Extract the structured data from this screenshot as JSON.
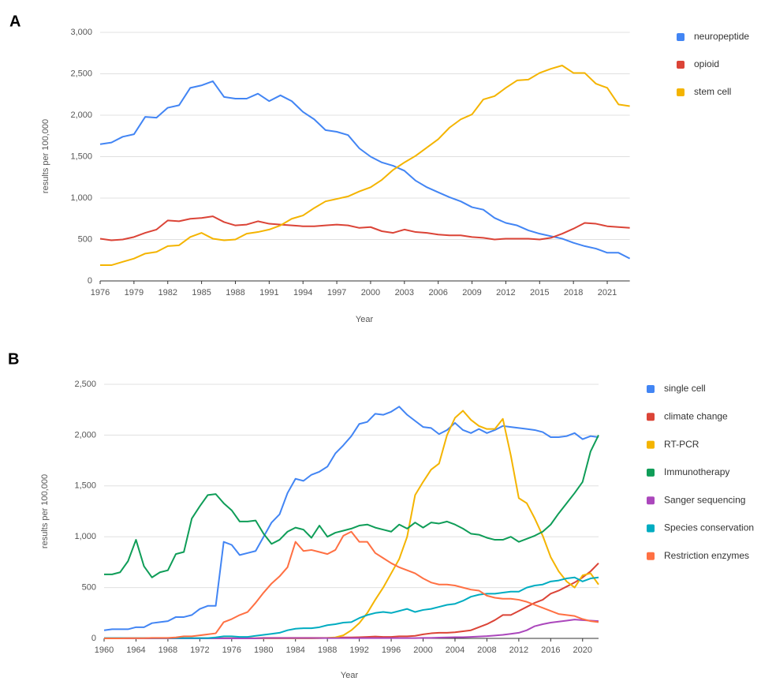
{
  "chart_data": [
    {
      "type": "line",
      "panel": "A",
      "xlabel": "Year",
      "ylabel": "results per 100,000",
      "legend": "right",
      "grid": true,
      "x": [
        1976,
        1977,
        1978,
        1979,
        1980,
        1981,
        1982,
        1983,
        1984,
        1985,
        1986,
        1987,
        1988,
        1989,
        1990,
        1991,
        1992,
        1993,
        1994,
        1995,
        1996,
        1997,
        1998,
        1999,
        2000,
        2001,
        2002,
        2003,
        2004,
        2005,
        2006,
        2007,
        2008,
        2009,
        2010,
        2011,
        2012,
        2013,
        2014,
        2015,
        2016,
        2017,
        2018,
        2019,
        2020,
        2021,
        2022,
        2023
      ],
      "xlim": [
        1976,
        2023
      ],
      "xticks": [
        1976,
        1979,
        1982,
        1985,
        1988,
        1991,
        1994,
        1997,
        2000,
        2003,
        2006,
        2009,
        2012,
        2015,
        2018,
        2021
      ],
      "ylim": [
        0,
        3000
      ],
      "yticks": [
        0,
        500,
        {
          "value": 1000,
          "label": "1,000"
        },
        {
          "value": 1500,
          "label": "1,500"
        },
        {
          "value": 2000,
          "label": "2,000"
        },
        {
          "value": 2500,
          "label": "2,500"
        },
        {
          "value": 3000,
          "label": "3,000"
        }
      ],
      "series": [
        {
          "name": "neuropeptide",
          "color": "#4285f4",
          "values": [
            1650,
            1670,
            1740,
            1770,
            1980,
            1970,
            2090,
            2120,
            2330,
            2360,
            2410,
            2220,
            2200,
            2200,
            2260,
            2170,
            2240,
            2170,
            2040,
            1950,
            1820,
            1800,
            1760,
            1600,
            1500,
            1430,
            1390,
            1330,
            1210,
            1130,
            1070,
            1010,
            960,
            890,
            860,
            760,
            700,
            670,
            610,
            570,
            540,
            510,
            460,
            420,
            390,
            340,
            340,
            270
          ]
        },
        {
          "name": "opioid",
          "color": "#db4437",
          "values": [
            510,
            490,
            500,
            530,
            580,
            620,
            730,
            720,
            750,
            760,
            780,
            710,
            670,
            680,
            720,
            690,
            680,
            670,
            660,
            660,
            670,
            680,
            670,
            640,
            650,
            600,
            580,
            620,
            590,
            580,
            560,
            550,
            550,
            530,
            520,
            500,
            510,
            510,
            510,
            500,
            520,
            570,
            630,
            700,
            690,
            660,
            650,
            640
          ]
        },
        {
          "name": "stem cell",
          "color": "#f4b400",
          "values": [
            190,
            190,
            230,
            270,
            330,
            350,
            420,
            430,
            530,
            580,
            510,
            490,
            500,
            570,
            590,
            620,
            670,
            750,
            790,
            880,
            960,
            990,
            1020,
            1080,
            1130,
            1220,
            1340,
            1430,
            1510,
            1610,
            1710,
            1850,
            1950,
            2010,
            2190,
            2230,
            2330,
            2420,
            2430,
            2510,
            2560,
            2600,
            2510,
            2510,
            2380,
            2330,
            2130,
            2110
          ]
        }
      ]
    },
    {
      "type": "line",
      "panel": "B",
      "xlabel": "Year",
      "ylabel": "results per 100,000",
      "legend": "right",
      "grid": true,
      "x": [
        1960,
        1961,
        1962,
        1963,
        1964,
        1965,
        1966,
        1967,
        1968,
        1969,
        1970,
        1971,
        1972,
        1973,
        1974,
        1975,
        1976,
        1977,
        1978,
        1979,
        1980,
        1981,
        1982,
        1983,
        1984,
        1985,
        1986,
        1987,
        1988,
        1989,
        1990,
        1991,
        1992,
        1993,
        1994,
        1995,
        1996,
        1997,
        1998,
        1999,
        2000,
        2001,
        2002,
        2003,
        2004,
        2005,
        2006,
        2007,
        2008,
        2009,
        2010,
        2011,
        2012,
        2013,
        2014,
        2015,
        2016,
        2017,
        2018,
        2019,
        2020,
        2021,
        2022
      ],
      "xlim": [
        1960,
        2022
      ],
      "xticks": [
        1960,
        1964,
        1968,
        1972,
        1976,
        1980,
        1984,
        1988,
        1992,
        1996,
        2000,
        2004,
        2008,
        2012,
        2016,
        2020
      ],
      "ylim": [
        0,
        2500
      ],
      "yticks": [
        0,
        500,
        {
          "value": 1000,
          "label": "1,000"
        },
        {
          "value": 1500,
          "label": "1,500"
        },
        {
          "value": 2000,
          "label": "2,000"
        },
        {
          "value": 2500,
          "label": "2,500"
        }
      ],
      "series": [
        {
          "name": "single cell",
          "color": "#4285f4",
          "values": [
            80,
            90,
            90,
            90,
            110,
            110,
            150,
            160,
            170,
            210,
            210,
            230,
            290,
            320,
            320,
            950,
            920,
            820,
            840,
            860,
            1000,
            1140,
            1220,
            1430,
            1570,
            1550,
            1610,
            1640,
            1690,
            1820,
            1900,
            1990,
            2110,
            2130,
            2210,
            2200,
            2230,
            2280,
            2200,
            2140,
            2080,
            2070,
            2010,
            2050,
            2120,
            2050,
            2020,
            2060,
            2020,
            2050,
            2090,
            2080,
            2070,
            2060,
            2050,
            2030,
            1980,
            1980,
            1990,
            2020,
            1960,
            1990,
            1980
          ]
        },
        {
          "name": "climate change",
          "color": "#db4437",
          "values": [
            2,
            2,
            2,
            2,
            2,
            2,
            2,
            2,
            2,
            2,
            2,
            2,
            2,
            2,
            2,
            2,
            2,
            2,
            2,
            2,
            5,
            5,
            5,
            5,
            5,
            5,
            5,
            5,
            5,
            5,
            10,
            10,
            12,
            15,
            18,
            15,
            15,
            20,
            20,
            25,
            40,
            50,
            55,
            55,
            60,
            70,
            80,
            110,
            140,
            180,
            230,
            230,
            270,
            310,
            350,
            380,
            440,
            470,
            510,
            550,
            600,
            660,
            740
          ]
        },
        {
          "name": "RT-PCR",
          "color": "#f4b400",
          "values": [
            0,
            0,
            0,
            0,
            0,
            0,
            0,
            0,
            0,
            0,
            0,
            0,
            0,
            0,
            0,
            0,
            0,
            0,
            0,
            0,
            0,
            0,
            0,
            0,
            0,
            0,
            0,
            2,
            5,
            10,
            30,
            80,
            150,
            250,
            380,
            500,
            640,
            780,
            1000,
            1410,
            1540,
            1660,
            1720,
            2000,
            2170,
            2240,
            2150,
            2090,
            2060,
            2060,
            2160,
            1800,
            1380,
            1330,
            1180,
            1010,
            800,
            660,
            560,
            500,
            620,
            640,
            530
          ]
        },
        {
          "name": "Immunotherapy",
          "color": "#0f9d58",
          "values": [
            630,
            630,
            650,
            760,
            970,
            710,
            600,
            650,
            670,
            830,
            850,
            1180,
            1300,
            1410,
            1420,
            1330,
            1260,
            1150,
            1150,
            1160,
            1030,
            930,
            970,
            1050,
            1090,
            1070,
            990,
            1110,
            1000,
            1040,
            1060,
            1080,
            1110,
            1120,
            1090,
            1070,
            1050,
            1120,
            1080,
            1140,
            1090,
            1140,
            1130,
            1150,
            1120,
            1080,
            1030,
            1020,
            990,
            970,
            970,
            1000,
            950,
            980,
            1010,
            1050,
            1120,
            1230,
            1330,
            1430,
            1540,
            1840,
            2000
          ]
        },
        {
          "name": "Sanger sequencing",
          "color": "#ab47bc",
          "values": [
            0,
            0,
            0,
            0,
            0,
            0,
            0,
            0,
            0,
            0,
            0,
            0,
            0,
            0,
            0,
            0,
            0,
            0,
            0,
            0,
            3,
            3,
            3,
            3,
            3,
            3,
            3,
            3,
            3,
            3,
            3,
            3,
            3,
            3,
            3,
            3,
            3,
            3,
            3,
            3,
            5,
            5,
            8,
            10,
            12,
            12,
            15,
            18,
            22,
            28,
            35,
            45,
            55,
            80,
            120,
            140,
            155,
            165,
            175,
            185,
            180,
            175,
            170
          ]
        },
        {
          "name": "Species conservation",
          "color": "#00acc1",
          "values": [
            3,
            3,
            3,
            3,
            3,
            3,
            3,
            3,
            3,
            3,
            3,
            3,
            3,
            3,
            10,
            20,
            20,
            15,
            15,
            25,
            35,
            45,
            55,
            80,
            95,
            100,
            100,
            110,
            130,
            140,
            155,
            160,
            200,
            230,
            250,
            260,
            250,
            270,
            290,
            260,
            280,
            290,
            310,
            330,
            340,
            370,
            410,
            430,
            440,
            440,
            450,
            460,
            460,
            500,
            520,
            530,
            560,
            570,
            590,
            600,
            560,
            590,
            600
          ]
        },
        {
          "name": "Restriction enzymes",
          "color": "#ff7043",
          "values": [
            0,
            0,
            0,
            2,
            2,
            2,
            5,
            5,
            5,
            10,
            20,
            20,
            30,
            40,
            50,
            160,
            190,
            230,
            260,
            350,
            450,
            540,
            610,
            700,
            950,
            860,
            870,
            850,
            830,
            870,
            1010,
            1050,
            950,
            950,
            840,
            790,
            740,
            700,
            670,
            640,
            590,
            550,
            530,
            530,
            520,
            500,
            480,
            470,
            420,
            400,
            390,
            390,
            380,
            360,
            330,
            300,
            270,
            240,
            230,
            220,
            190,
            170,
            160
          ]
        }
      ]
    }
  ]
}
